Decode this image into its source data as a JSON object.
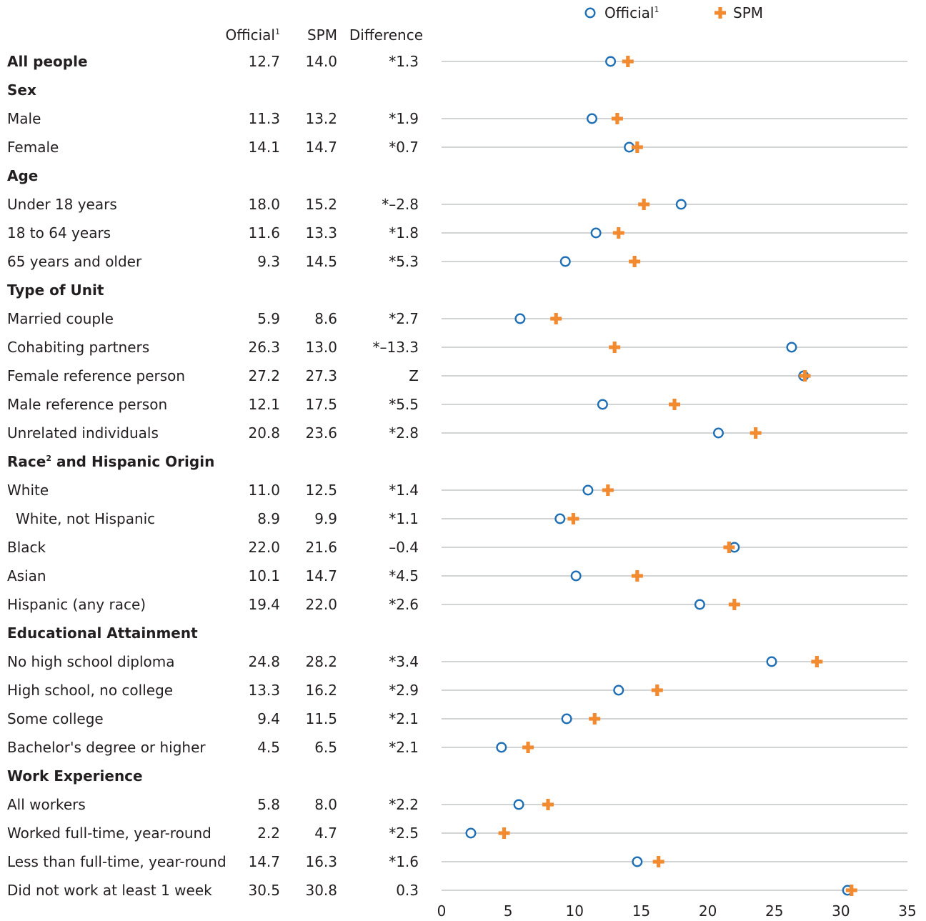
{
  "header": {
    "official": "Official",
    "official_note": "1",
    "spm": "SPM",
    "difference": "Difference"
  },
  "legend": {
    "official": "Official",
    "official_note": "1",
    "spm": "SPM"
  },
  "colors": {
    "official": "#1f6fb5",
    "spm": "#f28a30",
    "gridline": "#a7a9ac",
    "text": "#231f20"
  },
  "chart_data": {
    "type": "scatter",
    "xlim": [
      0,
      35
    ],
    "xticks": [
      "0",
      "5",
      "10",
      "15",
      "20",
      "25",
      "30",
      "35"
    ],
    "grid": true,
    "legend_position": "top-right",
    "series": [
      {
        "name": "Official",
        "marker": "open-circle"
      },
      {
        "name": "SPM",
        "marker": "plus"
      }
    ],
    "rows": [
      {
        "label": "All people",
        "heading": true,
        "official": 12.7,
        "spm": 14.0,
        "official_text": "12.7",
        "spm_text": "14.0",
        "diff": "*1.3"
      },
      {
        "label": "Sex",
        "heading": true,
        "section": true
      },
      {
        "label": "Male",
        "official": 11.3,
        "spm": 13.2,
        "official_text": "11.3",
        "spm_text": "13.2",
        "diff": "*1.9"
      },
      {
        "label": "Female",
        "official": 14.1,
        "spm": 14.7,
        "official_text": "14.1",
        "spm_text": "14.7",
        "diff": "*0.7"
      },
      {
        "label": "Age",
        "heading": true,
        "section": true
      },
      {
        "label": "Under 18 years",
        "official": 18.0,
        "spm": 15.2,
        "official_text": "18.0",
        "spm_text": "15.2",
        "diff": "*–2.8"
      },
      {
        "label": "18 to 64 years",
        "official": 11.6,
        "spm": 13.3,
        "official_text": "11.6",
        "spm_text": "13.3",
        "diff": "*1.8"
      },
      {
        "label": "65 years and older",
        "official": 9.3,
        "spm": 14.5,
        "official_text": "9.3",
        "spm_text": "14.5",
        "diff": "*5.3"
      },
      {
        "label": "Type of Unit",
        "heading": true,
        "section": true
      },
      {
        "label": "Married couple",
        "official": 5.9,
        "spm": 8.6,
        "official_text": "5.9",
        "spm_text": "8.6",
        "diff": "*2.7"
      },
      {
        "label": "Cohabiting partners",
        "official": 26.3,
        "spm": 13.0,
        "official_text": "26.3",
        "spm_text": "13.0",
        "diff": "*–13.3"
      },
      {
        "label": "Female reference person",
        "official": 27.2,
        "spm": 27.3,
        "official_text": "27.2",
        "spm_text": "27.3",
        "diff": "Z"
      },
      {
        "label": "Male reference person",
        "official": 12.1,
        "spm": 17.5,
        "official_text": "12.1",
        "spm_text": "17.5",
        "diff": "*5.5"
      },
      {
        "label": "Unrelated individuals",
        "official": 20.8,
        "spm": 23.6,
        "official_text": "20.8",
        "spm_text": "23.6",
        "diff": "*2.8"
      },
      {
        "label": "Race",
        "label_note": "2",
        "label_suffix": " and Hispanic Origin",
        "heading": true,
        "section": true
      },
      {
        "label": "White",
        "official": 11.0,
        "spm": 12.5,
        "official_text": "11.0",
        "spm_text": "12.5",
        "diff": "*1.4"
      },
      {
        "label": "White, not Hispanic",
        "indent": true,
        "official": 8.9,
        "spm": 9.9,
        "official_text": "8.9",
        "spm_text": "9.9",
        "diff": "*1.1"
      },
      {
        "label": "Black",
        "official": 22.0,
        "spm": 21.6,
        "official_text": "22.0",
        "spm_text": "21.6",
        "diff": "–0.4"
      },
      {
        "label": "Asian",
        "official": 10.1,
        "spm": 14.7,
        "official_text": "10.1",
        "spm_text": "14.7",
        "diff": "*4.5"
      },
      {
        "label": "Hispanic (any race)",
        "official": 19.4,
        "spm": 22.0,
        "official_text": "19.4",
        "spm_text": "22.0",
        "diff": "*2.6"
      },
      {
        "label": "Educational Attainment",
        "heading": true,
        "section": true
      },
      {
        "label": "No high school diploma",
        "official": 24.8,
        "spm": 28.2,
        "official_text": "24.8",
        "spm_text": "28.2",
        "diff": "*3.4"
      },
      {
        "label": "High school, no college",
        "official": 13.3,
        "spm": 16.2,
        "official_text": "13.3",
        "spm_text": "16.2",
        "diff": "*2.9"
      },
      {
        "label": "Some college",
        "official": 9.4,
        "spm": 11.5,
        "official_text": "9.4",
        "spm_text": "11.5",
        "diff": "*2.1"
      },
      {
        "label": "Bachelor's degree or higher",
        "official": 4.5,
        "spm": 6.5,
        "official_text": "4.5",
        "spm_text": "6.5",
        "diff": "*2.1"
      },
      {
        "label": "Work Experience",
        "heading": true,
        "section": true
      },
      {
        "label": "All workers",
        "official": 5.8,
        "spm": 8.0,
        "official_text": "5.8",
        "spm_text": "8.0",
        "diff": "*2.2"
      },
      {
        "label": "Worked full-time, year-round",
        "official": 2.2,
        "spm": 4.7,
        "official_text": "2.2",
        "spm_text": "4.7",
        "diff": "*2.5"
      },
      {
        "label": "Less than full-time, year-round",
        "official": 14.7,
        "spm": 16.3,
        "official_text": "14.7",
        "spm_text": "16.3",
        "diff": "*1.6"
      },
      {
        "label": "Did not work at least 1 week",
        "official": 30.5,
        "spm": 30.8,
        "official_text": "30.5",
        "spm_text": "30.8",
        "diff": "0.3"
      }
    ]
  }
}
